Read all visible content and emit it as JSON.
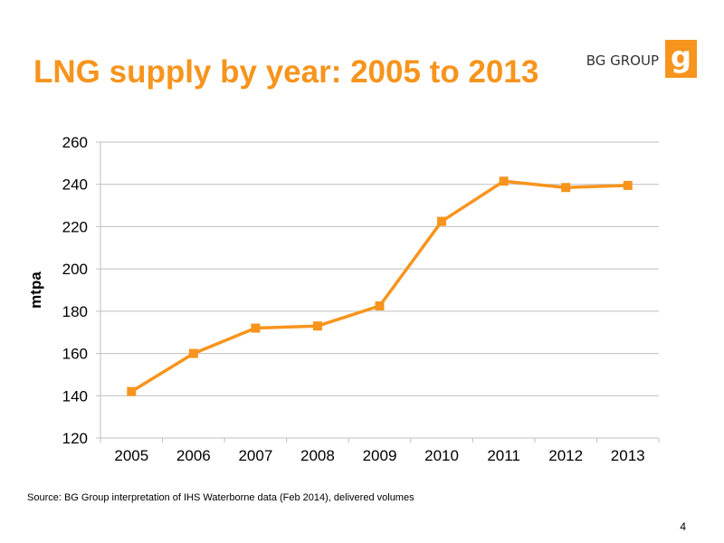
{
  "slide": {
    "title": "LNG supply by year: 2005 to 2013",
    "source": "Source: BG Group interpretation of IHS Waterborne data (Feb 2014), delivered volumes",
    "page_number": "4"
  },
  "brand": {
    "name": "BG GROUP",
    "logo_letter": "g",
    "logo_icon": "bg-group-logo-icon"
  },
  "colors": {
    "title": "#F7941D",
    "accent": "#F7941D",
    "series": "#F7941D",
    "gridline": "#BFBFBF",
    "axis": "#BFBFBF",
    "text": "#000000"
  },
  "chart_data": {
    "type": "line",
    "x": [
      "2005",
      "2006",
      "2007",
      "2008",
      "2009",
      "2010",
      "2011",
      "2012",
      "2013"
    ],
    "series": [
      {
        "values": [
          142,
          160,
          172,
          173,
          182.5,
          222.5,
          241.5,
          238.5,
          239.5
        ],
        "marker": "square"
      }
    ],
    "xlabel": "",
    "ylabel": "mtpa",
    "ylim": [
      120,
      260
    ],
    "yticks": [
      120,
      140,
      160,
      180,
      200,
      220,
      240,
      260
    ],
    "grid": "horizontal",
    "legend": "none"
  }
}
